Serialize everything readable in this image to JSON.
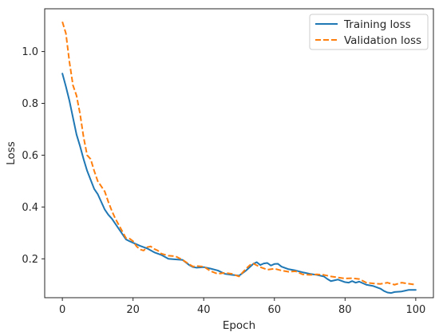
{
  "chart_data": {
    "type": "line",
    "title": "",
    "xlabel": "Epoch",
    "ylabel": "Loss",
    "xlim": [
      -5,
      105
    ],
    "ylim": [
      0.05,
      1.165
    ],
    "xticks": [
      0,
      20,
      40,
      60,
      80,
      100
    ],
    "xtick_labels": [
      "0",
      "20",
      "40",
      "60",
      "80",
      "100"
    ],
    "yticks": [
      0.2,
      0.4,
      0.6,
      0.8,
      1.0
    ],
    "ytick_labels": [
      "0.2",
      "0.4",
      "0.6",
      "0.8",
      "1.0"
    ],
    "grid": false,
    "legend_position": "top-right",
    "series": [
      {
        "name": "Training loss",
        "color": "#1f77b4",
        "style": "solid",
        "points": [
          [
            0,
            0.915
          ],
          [
            1,
            0.865
          ],
          [
            2,
            0.81
          ],
          [
            3,
            0.745
          ],
          [
            4,
            0.68
          ],
          [
            5,
            0.635
          ],
          [
            6,
            0.585
          ],
          [
            7,
            0.54
          ],
          [
            8,
            0.505
          ],
          [
            9,
            0.47
          ],
          [
            10,
            0.45
          ],
          [
            11,
            0.42
          ],
          [
            12,
            0.39
          ],
          [
            13,
            0.37
          ],
          [
            14,
            0.355
          ],
          [
            15,
            0.335
          ],
          [
            16,
            0.315
          ],
          [
            17,
            0.295
          ],
          [
            18,
            0.275
          ],
          [
            19,
            0.268
          ],
          [
            20,
            0.262
          ],
          [
            22,
            0.25
          ],
          [
            24,
            0.24
          ],
          [
            26,
            0.225
          ],
          [
            28,
            0.215
          ],
          [
            30,
            0.2
          ],
          [
            32,
            0.198
          ],
          [
            34,
            0.196
          ],
          [
            36,
            0.175
          ],
          [
            37,
            0.168
          ],
          [
            38,
            0.166
          ],
          [
            40,
            0.168
          ],
          [
            42,
            0.162
          ],
          [
            44,
            0.155
          ],
          [
            46,
            0.142
          ],
          [
            48,
            0.138
          ],
          [
            50,
            0.135
          ],
          [
            52,
            0.155
          ],
          [
            54,
            0.18
          ],
          [
            55,
            0.187
          ],
          [
            56,
            0.176
          ],
          [
            57,
            0.182
          ],
          [
            58,
            0.184
          ],
          [
            59,
            0.174
          ],
          [
            60,
            0.18
          ],
          [
            61,
            0.181
          ],
          [
            62,
            0.17
          ],
          [
            64,
            0.16
          ],
          [
            66,
            0.155
          ],
          [
            68,
            0.148
          ],
          [
            70,
            0.142
          ],
          [
            72,
            0.138
          ],
          [
            74,
            0.132
          ],
          [
            75,
            0.122
          ],
          [
            76,
            0.114
          ],
          [
            78,
            0.12
          ],
          [
            80,
            0.11
          ],
          [
            81,
            0.108
          ],
          [
            82,
            0.114
          ],
          [
            83,
            0.108
          ],
          [
            84,
            0.112
          ],
          [
            86,
            0.1
          ],
          [
            88,
            0.095
          ],
          [
            90,
            0.085
          ],
          [
            91,
            0.076
          ],
          [
            92,
            0.07
          ],
          [
            93,
            0.068
          ],
          [
            94,
            0.072
          ],
          [
            96,
            0.074
          ],
          [
            98,
            0.08
          ],
          [
            100,
            0.08
          ]
        ]
      },
      {
        "name": "Validation loss",
        "color": "#ff7f0e",
        "style": "dashed",
        "points": [
          [
            0,
            1.115
          ],
          [
            1,
            1.07
          ],
          [
            2,
            0.96
          ],
          [
            3,
            0.87
          ],
          [
            4,
            0.83
          ],
          [
            5,
            0.76
          ],
          [
            6,
            0.67
          ],
          [
            7,
            0.6
          ],
          [
            8,
            0.585
          ],
          [
            9,
            0.54
          ],
          [
            10,
            0.5
          ],
          [
            11,
            0.48
          ],
          [
            12,
            0.46
          ],
          [
            13,
            0.42
          ],
          [
            14,
            0.385
          ],
          [
            15,
            0.355
          ],
          [
            16,
            0.33
          ],
          [
            17,
            0.305
          ],
          [
            18,
            0.28
          ],
          [
            19,
            0.278
          ],
          [
            20,
            0.268
          ],
          [
            21,
            0.248
          ],
          [
            22,
            0.236
          ],
          [
            23,
            0.232
          ],
          [
            24,
            0.245
          ],
          [
            25,
            0.248
          ],
          [
            26,
            0.238
          ],
          [
            27,
            0.232
          ],
          [
            28,
            0.22
          ],
          [
            30,
            0.212
          ],
          [
            32,
            0.21
          ],
          [
            34,
            0.196
          ],
          [
            36,
            0.178
          ],
          [
            37,
            0.17
          ],
          [
            38,
            0.172
          ],
          [
            40,
            0.17
          ],
          [
            42,
            0.152
          ],
          [
            44,
            0.142
          ],
          [
            46,
            0.146
          ],
          [
            48,
            0.142
          ],
          [
            50,
            0.132
          ],
          [
            52,
            0.162
          ],
          [
            53,
            0.175
          ],
          [
            54,
            0.182
          ],
          [
            56,
            0.168
          ],
          [
            58,
            0.158
          ],
          [
            60,
            0.162
          ],
          [
            62,
            0.155
          ],
          [
            64,
            0.15
          ],
          [
            66,
            0.152
          ],
          [
            68,
            0.14
          ],
          [
            70,
            0.138
          ],
          [
            72,
            0.14
          ],
          [
            74,
            0.138
          ],
          [
            76,
            0.132
          ],
          [
            78,
            0.128
          ],
          [
            80,
            0.124
          ],
          [
            82,
            0.125
          ],
          [
            84,
            0.122
          ],
          [
            86,
            0.108
          ],
          [
            88,
            0.105
          ],
          [
            90,
            0.103
          ],
          [
            92,
            0.108
          ],
          [
            94,
            0.1
          ],
          [
            96,
            0.108
          ],
          [
            98,
            0.104
          ],
          [
            100,
            0.1
          ]
        ]
      }
    ]
  }
}
